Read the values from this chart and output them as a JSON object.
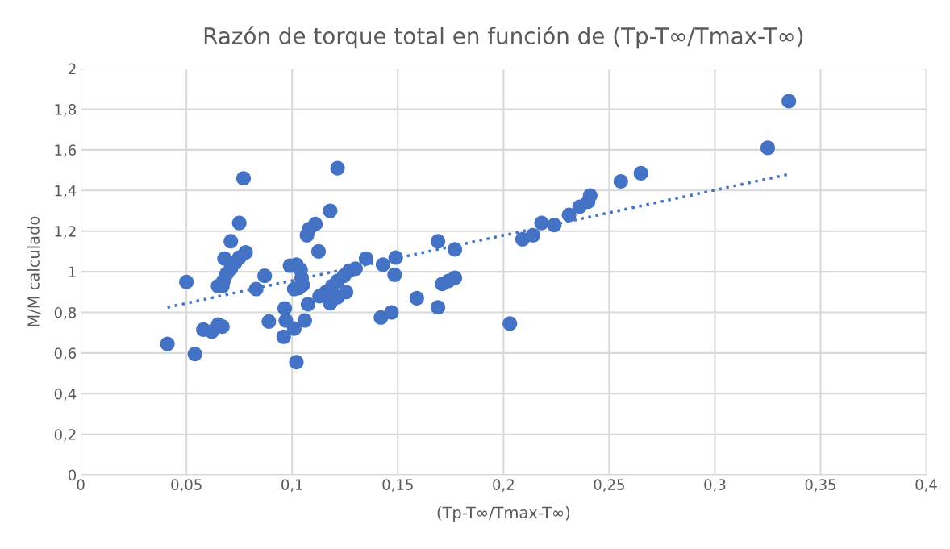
{
  "chart_data": {
    "type": "scatter",
    "title": "Razón de torque total en función de (Tp-T∞/Tmax-T∞)",
    "xlabel": "(Tp-T∞/Tmax-T∞)",
    "ylabel": "M/M calculado",
    "series": [
      {
        "color": "#4472c4",
        "marker": "circle",
        "x": [
          0.041,
          0.05,
          0.054,
          0.058,
          0.062,
          0.065,
          0.067,
          0.065,
          0.067,
          0.068,
          0.071,
          0.075,
          0.077,
          0.0675,
          0.069,
          0.071,
          0.073,
          0.075,
          0.078,
          0.083,
          0.087,
          0.089,
          0.096,
          0.0965,
          0.097,
          0.101,
          0.102,
          0.106,
          0.1075,
          0.099,
          0.102,
          0.104,
          0.1045,
          0.103,
          0.101,
          0.105,
          0.107,
          0.108,
          0.111,
          0.118,
          0.1125,
          0.1215,
          0.113,
          0.116,
          0.119,
          0.1215,
          0.1245,
          0.127,
          0.13,
          0.118,
          0.1215,
          0.1255,
          0.135,
          0.143,
          0.149,
          0.1485,
          0.142,
          0.147,
          0.159,
          0.169,
          0.169,
          0.171,
          0.174,
          0.177,
          0.177,
          0.203,
          0.209,
          0.214,
          0.218,
          0.224,
          0.231,
          0.236,
          0.24,
          0.241,
          0.2555,
          0.265,
          0.325,
          0.335
        ],
        "values": [
          0.645,
          0.95,
          0.595,
          0.715,
          0.705,
          0.74,
          0.73,
          0.93,
          0.93,
          1.065,
          1.15,
          1.24,
          1.46,
          0.955,
          0.99,
          1.015,
          1.045,
          1.07,
          1.095,
          0.915,
          0.98,
          0.755,
          0.68,
          0.82,
          0.76,
          0.72,
          0.555,
          0.76,
          0.84,
          1.03,
          1.035,
          1.01,
          0.97,
          0.92,
          0.915,
          0.935,
          1.18,
          1.21,
          1.235,
          1.3,
          1.1,
          1.51,
          0.88,
          0.9,
          0.93,
          0.955,
          0.98,
          1.005,
          1.015,
          0.845,
          0.875,
          0.9,
          1.065,
          1.035,
          1.07,
          0.985,
          0.775,
          0.8,
          0.87,
          1.15,
          0.825,
          0.94,
          0.955,
          0.97,
          1.11,
          0.745,
          1.16,
          1.18,
          1.24,
          1.23,
          1.28,
          1.32,
          1.345,
          1.375,
          1.445,
          1.485,
          1.61,
          1.84
        ]
      },
      {
        "type": "line",
        "color": "#4472c4",
        "line_style": "dotted",
        "marker": "none",
        "x": [
          0.041,
          0.335
        ],
        "values": [
          0.825,
          1.48
        ]
      }
    ],
    "xlim": [
      0,
      0.4
    ],
    "xticks": [
      0,
      {
        "value": 0.05,
        "label": "0,05"
      },
      {
        "value": 0.1,
        "label": "0,1"
      },
      {
        "value": 0.15,
        "label": "0,15"
      },
      {
        "value": 0.2,
        "label": "0,2"
      },
      {
        "value": 0.25,
        "label": "0,25"
      },
      {
        "value": 0.3,
        "label": "0,3"
      },
      {
        "value": 0.35,
        "label": "0,35"
      },
      {
        "value": 0.4,
        "label": "0,4"
      }
    ],
    "ylim": [
      0,
      2
    ],
    "yticks": [
      0,
      {
        "value": 0.2,
        "label": "0,2"
      },
      {
        "value": 0.4,
        "label": "0,4"
      },
      {
        "value": 0.6,
        "label": "0,6"
      },
      {
        "value": 0.8,
        "label": "0,8"
      },
      1,
      {
        "value": 1.2,
        "label": "1,2"
      },
      {
        "value": 1.4,
        "label": "1,4"
      },
      {
        "value": 1.6,
        "label": "1,6"
      },
      {
        "value": 1.8,
        "label": "1,8"
      },
      2
    ],
    "grid": true,
    "legend": false
  }
}
